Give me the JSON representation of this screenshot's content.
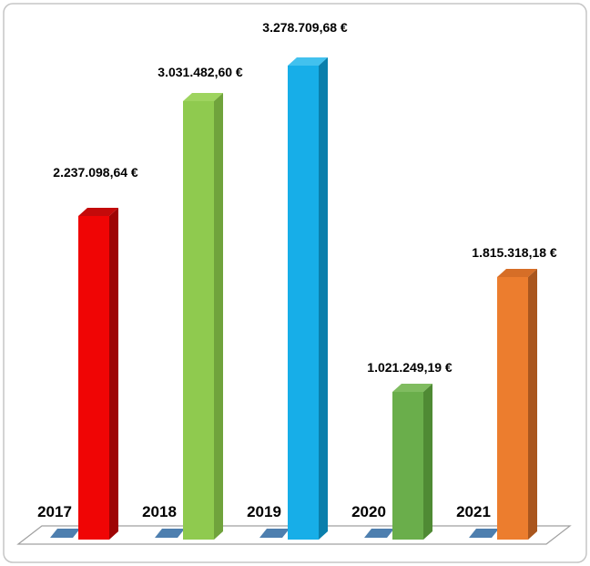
{
  "window": {
    "background": "#ffffff",
    "border_color": "#c5c5c5"
  },
  "chart_data": {
    "type": "bar",
    "style": "3d-column",
    "title": "",
    "xlabel": "",
    "ylabel": "",
    "legend": "none",
    "grid": false,
    "axes_visible": false,
    "ylim": [
      0,
      3278709.68
    ],
    "categories": [
      "2017",
      "2018",
      "2019",
      "2020",
      "2021"
    ],
    "values": [
      2237098.64,
      3031482.6,
      3278709.68,
      1021249.19,
      1815318.18
    ],
    "data_labels": [
      "2.237.098,64 €",
      "3.031.482,60 €",
      "3.278.709,68 €",
      "1.021.249,19 €",
      "1.815.318,18 €"
    ],
    "bar_colors": [
      {
        "front": "#f00505",
        "top": "#c40a0a",
        "side": "#9e0404"
      },
      {
        "front": "#8fca4f",
        "top": "#9ed45f",
        "side": "#70a33c"
      },
      {
        "front": "#17aee8",
        "top": "#42c1ee",
        "side": "#0a7fac"
      },
      {
        "front": "#6aae4b",
        "top": "#80bc60",
        "side": "#4f8a34"
      },
      {
        "front": "#ec7d2e",
        "top": "#d66e27",
        "side": "#a9561e"
      }
    ],
    "floor": {
      "outline": "#a0a0a0",
      "fill": "#ffffff",
      "shadow_color": "#4e7faf"
    },
    "label_offsets": [
      34,
      18,
      28,
      13,
      13
    ],
    "text_color": "#000000"
  }
}
